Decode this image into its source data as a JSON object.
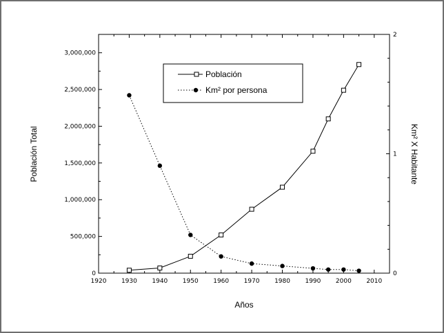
{
  "chart_data": {
    "type": "line",
    "title": "",
    "xlabel": "Años",
    "ylabel_left": "Población Total",
    "ylabel_right": "Km² X Habitante",
    "xlim": [
      1920,
      2015
    ],
    "ylim_left": [
      0,
      3250000
    ],
    "ylim_right": [
      0,
      2
    ],
    "x_ticks": [
      1920,
      1930,
      1940,
      1950,
      1960,
      1970,
      1980,
      1990,
      2000,
      2010
    ],
    "y_left_ticks": [
      {
        "value": 0,
        "label": "0"
      },
      {
        "value": 500000,
        "label": "500,000"
      },
      {
        "value": 1000000,
        "label": "1,000,000"
      },
      {
        "value": 1500000,
        "label": "1,500,000"
      },
      {
        "value": 2000000,
        "label": "2,000,000"
      },
      {
        "value": 2500000,
        "label": "2,500,000"
      },
      {
        "value": 3000000,
        "label": "3,000,000"
      }
    ],
    "y_right_ticks": [
      {
        "value": 0,
        "label": "0"
      },
      {
        "value": 1,
        "label": "1"
      },
      {
        "value": 2,
        "label": "2"
      }
    ],
    "grid": false,
    "legend_position": "top-center",
    "series": [
      {
        "name": "Población",
        "axis": "left",
        "style": "solid",
        "marker": "open-square",
        "color": "#000000",
        "x": [
          1930,
          1940,
          1950,
          1960,
          1970,
          1980,
          1990,
          1995,
          2000,
          2005
        ],
        "y": [
          40000,
          70000,
          230000,
          520000,
          870000,
          1170000,
          1660000,
          2100000,
          2490000,
          2840000
        ]
      },
      {
        "name": "Km² por persona",
        "axis": "right",
        "style": "dotted",
        "marker": "filled-circle",
        "color": "#000000",
        "x": [
          1930,
          1940,
          1950,
          1960,
          1970,
          1980,
          1990,
          1995,
          2000,
          2005
        ],
        "y": [
          1.49,
          0.9,
          0.32,
          0.14,
          0.08,
          0.06,
          0.04,
          0.03,
          0.03,
          0.02
        ]
      }
    ]
  }
}
